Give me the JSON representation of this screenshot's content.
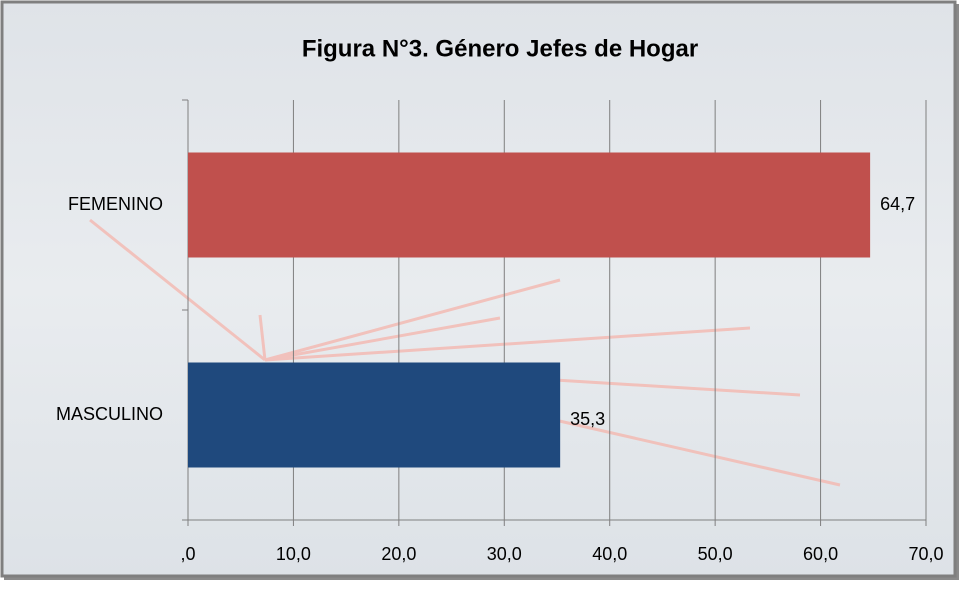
{
  "chart_data": {
    "type": "bar",
    "orientation": "horizontal",
    "title": "Figura N°3. Género Jefes de Hogar",
    "categories": [
      "FEMENINO",
      "MASCULINO"
    ],
    "values": [
      64.7,
      35.3
    ],
    "value_labels": [
      "64,7",
      "35,3"
    ],
    "colors": [
      "#c0504d",
      "#1f497d"
    ],
    "xlim": [
      0,
      70
    ],
    "xticks": [
      {
        "value": 0,
        "label": ",0"
      },
      {
        "value": 10,
        "label": "10,0"
      },
      {
        "value": 20,
        "label": "20,0"
      },
      {
        "value": 30,
        "label": "30,0"
      },
      {
        "value": 40,
        "label": "40,0"
      },
      {
        "value": 50,
        "label": "50,0"
      },
      {
        "value": 60,
        "label": "60,0"
      },
      {
        "value": 70,
        "label": "70,0"
      }
    ],
    "grid": true
  }
}
